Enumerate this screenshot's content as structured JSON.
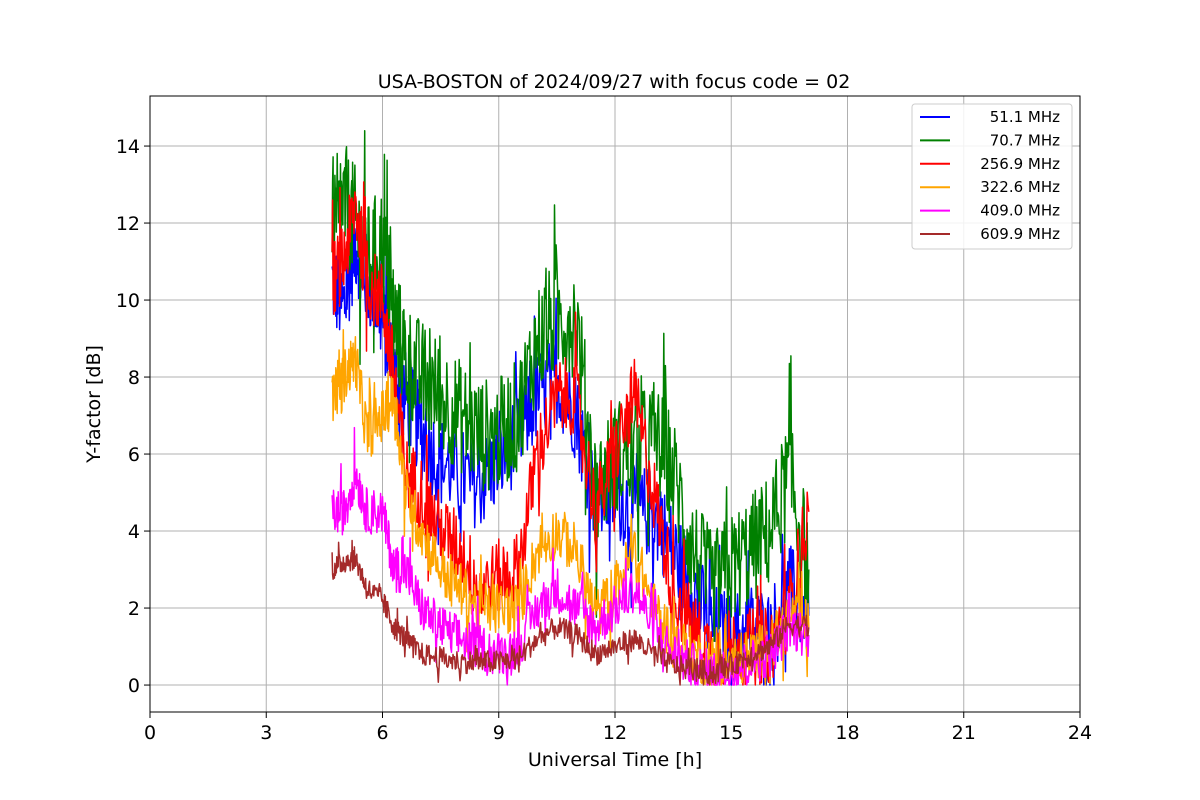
{
  "chart_data": {
    "type": "line",
    "title": "USA-BOSTON of 2024/09/27 with focus code = 02",
    "xlabel": "Universal Time [h]",
    "ylabel": "Y-factor [dB]",
    "xlim": [
      0,
      24
    ],
    "ylim": [
      -0.7,
      15.3
    ],
    "xticks": [
      0,
      3,
      6,
      9,
      12,
      15,
      18,
      21,
      24
    ],
    "yticks": [
      0,
      2,
      4,
      6,
      8,
      10,
      12,
      14
    ],
    "grid": true,
    "legend_position": "top-right",
    "series": [
      {
        "name": "51.1 MHz",
        "color": "#0000ff",
        "x": [
          4.7,
          5.0,
          5.3,
          5.6,
          6.0,
          6.3,
          6.6,
          7.0,
          7.5,
          8.0,
          8.5,
          9.0,
          9.5,
          10.0,
          10.5,
          11.0,
          11.5,
          12.0,
          12.5,
          13.0,
          13.5,
          14.0,
          14.5,
          15.0,
          15.5,
          16.0,
          16.5,
          17.0
        ],
        "y": [
          10.5,
          9.8,
          11.5,
          10.5,
          9.5,
          8.0,
          7.5,
          6.5,
          5.8,
          5.5,
          5.2,
          5.8,
          6.5,
          7.5,
          8.0,
          7.0,
          4.8,
          5.0,
          4.5,
          4.5,
          3.5,
          2.5,
          1.5,
          1.2,
          1.5,
          1.3,
          2.5,
          1.8
        ]
      },
      {
        "name": "70.7 MHz",
        "color": "#008000",
        "x": [
          4.7,
          5.0,
          5.3,
          5.6,
          6.0,
          6.3,
          6.6,
          7.0,
          7.5,
          8.0,
          8.5,
          9.0,
          9.5,
          10.0,
          10.5,
          11.0,
          11.5,
          12.0,
          12.5,
          13.0,
          13.5,
          14.0,
          14.5,
          15.0,
          15.5,
          16.0,
          16.5,
          17.0
        ],
        "y": [
          11.5,
          12.5,
          12.0,
          11.0,
          11.5,
          9.5,
          8.5,
          8.0,
          7.5,
          7.0,
          6.5,
          6.5,
          7.0,
          9.0,
          9.5,
          9.5,
          5.0,
          6.0,
          6.0,
          6.5,
          5.5,
          3.5,
          2.5,
          3.0,
          3.5,
          4.0,
          5.5,
          3.0
        ]
      },
      {
        "name": "256.9 MHz",
        "color": "#ff0000",
        "x": [
          4.7,
          5.0,
          5.3,
          5.6,
          6.0,
          6.3,
          6.6,
          7.0,
          7.5,
          8.0,
          8.5,
          9.0,
          9.5,
          10.0,
          10.5,
          11.0,
          11.5,
          12.0,
          12.5,
          13.0,
          13.5,
          14.0,
          14.5,
          15.0,
          15.5,
          16.0,
          16.5,
          17.0
        ],
        "y": [
          10.5,
          11.0,
          12.5,
          10.5,
          10.0,
          8.0,
          5.5,
          5.0,
          4.0,
          3.5,
          2.5,
          2.8,
          3.0,
          6.0,
          7.5,
          7.5,
          4.5,
          6.0,
          7.5,
          5.0,
          2.5,
          1.5,
          0.8,
          1.0,
          1.0,
          1.0,
          2.0,
          4.5
        ]
      },
      {
        "name": "322.6 MHz",
        "color": "#ffa500",
        "x": [
          4.7,
          5.0,
          5.3,
          5.6,
          6.0,
          6.3,
          6.6,
          7.0,
          7.5,
          8.0,
          8.5,
          9.0,
          9.5,
          10.0,
          10.5,
          11.0,
          11.5,
          12.0,
          12.5,
          13.0,
          13.5,
          14.0,
          14.5,
          15.0,
          15.5,
          16.0,
          16.5,
          17.0
        ],
        "y": [
          7.5,
          8.0,
          8.5,
          6.5,
          7.0,
          7.5,
          5.0,
          4.0,
          3.0,
          2.5,
          2.0,
          2.0,
          2.0,
          3.5,
          4.0,
          3.5,
          1.8,
          2.5,
          3.5,
          2.0,
          1.2,
          0.8,
          0.6,
          0.6,
          0.8,
          1.0,
          1.8,
          1.5
        ]
      },
      {
        "name": "409.0 MHz",
        "color": "#ff00ff",
        "x": [
          4.7,
          5.0,
          5.3,
          5.6,
          6.0,
          6.3,
          6.6,
          7.0,
          7.5,
          8.0,
          8.5,
          9.0,
          9.5,
          10.0,
          10.5,
          11.0,
          11.5,
          12.0,
          12.5,
          13.0,
          13.5,
          14.0,
          14.5,
          15.0,
          15.5,
          16.0,
          16.5,
          17.0
        ],
        "y": [
          4.5,
          4.5,
          5.5,
          4.5,
          4.5,
          3.0,
          3.0,
          2.0,
          1.5,
          1.2,
          1.0,
          0.8,
          1.0,
          2.0,
          2.5,
          2.0,
          1.5,
          2.0,
          2.5,
          1.5,
          0.8,
          0.5,
          0.3,
          0.4,
          0.6,
          0.8,
          1.5,
          1.3
        ]
      },
      {
        "name": "609.9 MHz",
        "color": "#a52a2a",
        "x": [
          4.7,
          5.0,
          5.3,
          5.6,
          6.0,
          6.3,
          6.6,
          7.0,
          7.5,
          8.0,
          8.5,
          9.0,
          9.5,
          10.0,
          10.5,
          11.0,
          11.5,
          12.0,
          12.5,
          13.0,
          13.5,
          14.0,
          14.5,
          15.0,
          15.5,
          16.0,
          16.5,
          17.0
        ],
        "y": [
          3.0,
          3.2,
          3.3,
          2.5,
          2.2,
          1.5,
          1.2,
          0.8,
          0.7,
          0.6,
          0.6,
          0.6,
          0.7,
          1.2,
          1.5,
          1.3,
          0.8,
          1.0,
          1.2,
          0.8,
          0.5,
          0.4,
          0.3,
          0.5,
          0.8,
          1.0,
          1.6,
          1.5
        ]
      }
    ]
  }
}
